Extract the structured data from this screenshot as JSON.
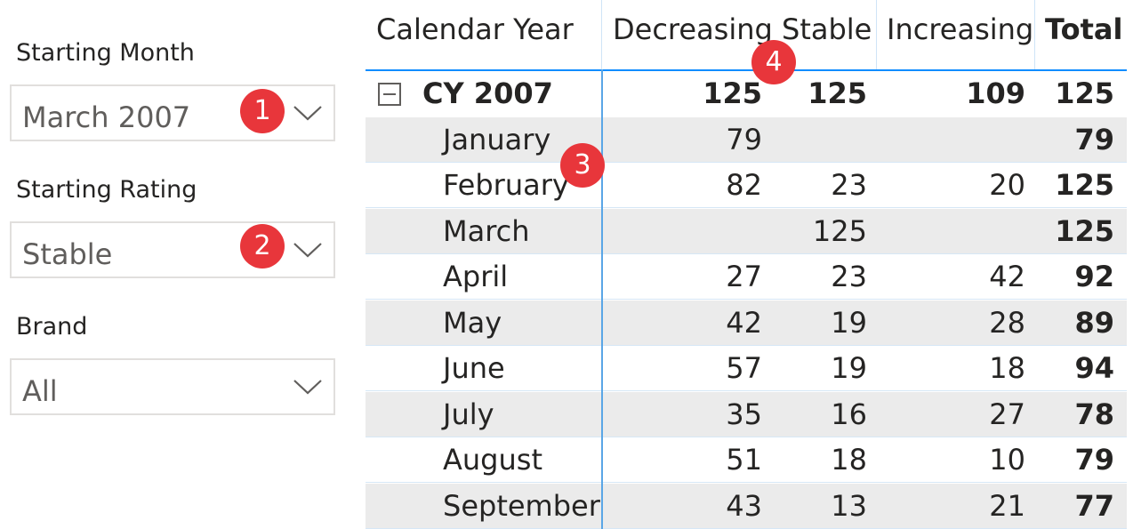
{
  "slicers": [
    {
      "title": "Starting Month",
      "value": "March 2007",
      "badge": "1"
    },
    {
      "title": "Starting Rating",
      "value": "Stable",
      "badge": "2"
    },
    {
      "title": "Brand",
      "value": "All"
    }
  ],
  "matrix": {
    "headers": [
      "Calendar Year",
      "Decreasing",
      "Stable",
      "Increasing",
      "Total"
    ],
    "group": {
      "label": "CY 2007",
      "values": [
        "125",
        "125",
        "109",
        "125"
      ]
    },
    "rows": [
      {
        "label": "January",
        "values": [
          "79",
          "",
          "",
          "79"
        ]
      },
      {
        "label": "February",
        "values": [
          "82",
          "23",
          "20",
          "125"
        ]
      },
      {
        "label": "March",
        "values": [
          "",
          "125",
          "",
          "125"
        ]
      },
      {
        "label": "April",
        "values": [
          "27",
          "23",
          "42",
          "92"
        ]
      },
      {
        "label": "May",
        "values": [
          "42",
          "19",
          "28",
          "89"
        ]
      },
      {
        "label": "June",
        "values": [
          "57",
          "19",
          "18",
          "94"
        ]
      },
      {
        "label": "July",
        "values": [
          "35",
          "16",
          "27",
          "78"
        ]
      },
      {
        "label": "August",
        "values": [
          "51",
          "18",
          "10",
          "79"
        ]
      },
      {
        "label": "September",
        "values": [
          "43",
          "13",
          "21",
          "77"
        ]
      }
    ]
  },
  "callouts": {
    "three": "3",
    "four": "4"
  },
  "colors": {
    "badge": "#e8363b",
    "accent": "#118dff",
    "shaded_row": "#ebebeb"
  }
}
